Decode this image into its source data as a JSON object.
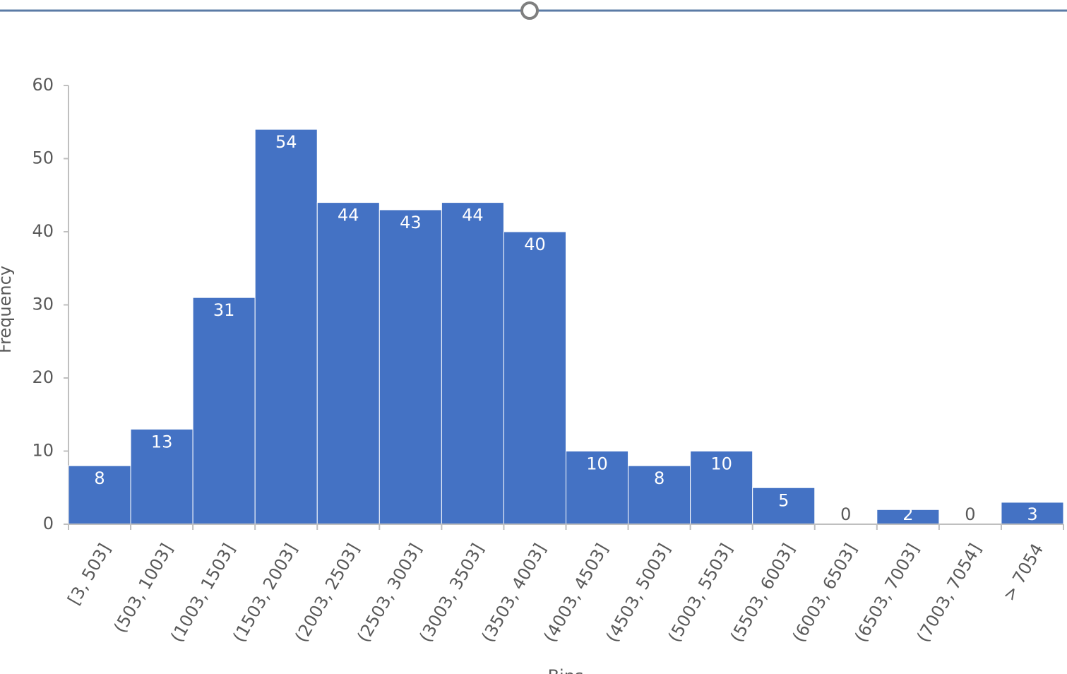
{
  "chart_data": {
    "type": "bar",
    "x_label": "Bins",
    "y_label": "Frequency",
    "categories": [
      "[3, 503]",
      "(503, 1003]",
      "(1003, 1503]",
      "(1503, 2003]",
      "(2003, 2503]",
      "(2503, 3003]",
      "(3003, 3503]",
      "(3503, 4003]",
      "(4003, 4503]",
      "(4503, 5003]",
      "(5003, 5503]",
      "(5503, 6003]",
      "(6003, 6503]",
      "(6503, 7003]",
      "(7003, 7054]",
      "> 7054"
    ],
    "values": [
      8,
      13,
      31,
      54,
      44,
      43,
      44,
      40,
      10,
      8,
      10,
      5,
      0,
      2,
      0,
      3
    ],
    "color": "#4472c4",
    "ylim": [
      0,
      60
    ],
    "yticks": [
      0,
      10,
      20,
      30,
      40,
      50,
      60
    ],
    "grid": false
  }
}
